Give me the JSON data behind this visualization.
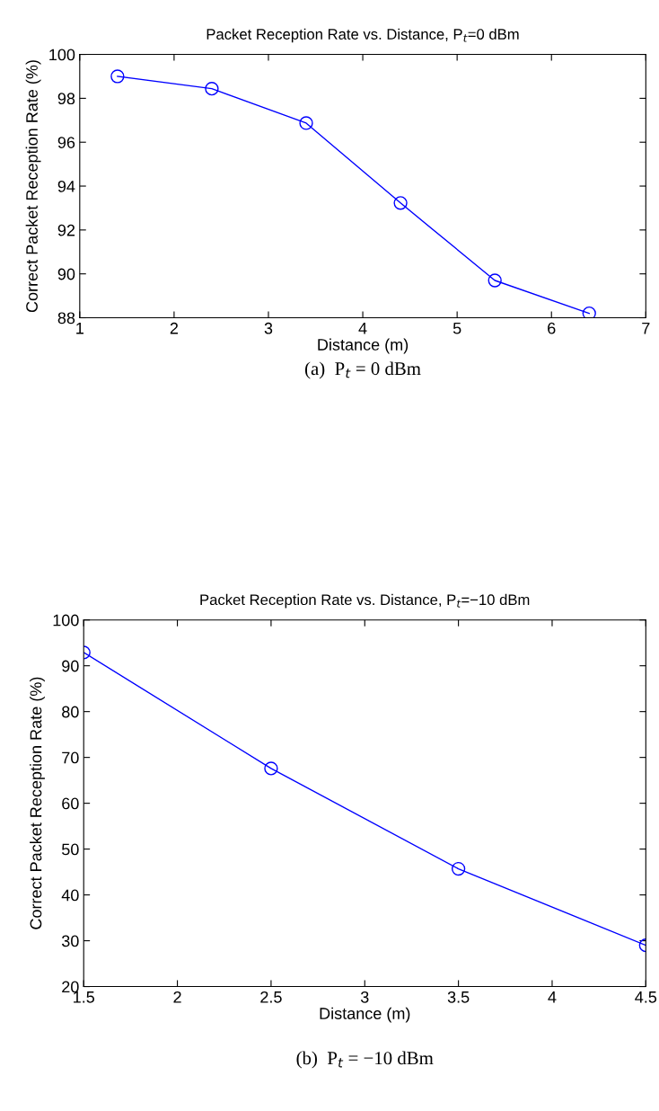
{
  "chart_data": [
    {
      "type": "line",
      "title": "Packet Reception Rate vs. Distance, P$_{t}$=0 dBm",
      "xlabel": "Distance (m)",
      "ylabel": "Correct Packet Reception Rate (%)",
      "x": [
        1.4,
        2.4,
        3.4,
        4.4,
        5.4,
        6.4
      ],
      "series": [
        {
          "color": "#0000ff",
          "values": [
            99.0,
            98.44,
            96.87,
            93.23,
            89.7,
            88.2
          ]
        }
      ],
      "xlim": [
        1,
        7
      ],
      "xticks": [
        1,
        2,
        3,
        4,
        5,
        6,
        7
      ],
      "ylim": [
        88,
        100
      ],
      "yticks": [
        88,
        90,
        92,
        94,
        96,
        98,
        100
      ],
      "marker": "circle",
      "line_style": "solid",
      "grid": false,
      "annotations": [
        "(a)  P$_{t}$ = 0 dBm"
      ]
    },
    {
      "type": "line",
      "title": "Packet Reception Rate vs. Distance, P$_{t}$=−10 dBm",
      "xlabel": "Distance (m)",
      "ylabel": "Correct Packet Reception Rate (%)",
      "x": [
        1.5,
        2.5,
        3.5,
        4.5
      ],
      "series": [
        {
          "color": "#0000ff",
          "values": [
            92.9,
            67.6,
            45.7,
            29.0
          ]
        }
      ],
      "xlim": [
        1.5,
        4.5
      ],
      "xticks": [
        1.5,
        2,
        2.5,
        3,
        3.5,
        4,
        4.5
      ],
      "ylim": [
        20,
        100
      ],
      "yticks": [
        20,
        30,
        40,
        50,
        60,
        70,
        80,
        90,
        100
      ],
      "marker": "circle",
      "line_style": "solid",
      "grid": false,
      "annotations": [
        "(b)  P$_{t}$ = −10 dBm"
      ]
    }
  ]
}
